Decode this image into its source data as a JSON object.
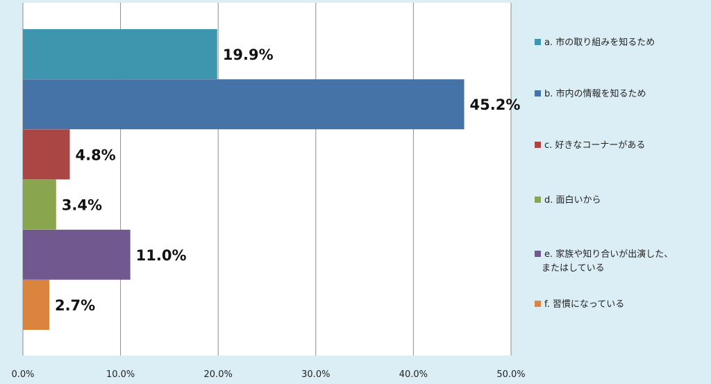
{
  "chart_data": {
    "type": "bar",
    "orientation": "horizontal",
    "categories": [
      "a. 市の取り組みを知るため",
      "b. 市内の情報を知るため",
      "c. 好きなコーナーがある",
      "d. 面白いから",
      "e. 家族や知り合いが出演した、またはしている",
      "f. 習慣になっている"
    ],
    "values": [
      19.9,
      45.2,
      4.8,
      3.4,
      11.0,
      2.7
    ],
    "value_labels": [
      "19.9%",
      "45.2%",
      "4.8%",
      "3.4%",
      "11.0%",
      "2.7%"
    ],
    "colors": [
      "#3d96ae",
      "#4572a7",
      "#aa4643",
      "#89a54e",
      "#71588f",
      "#db843d"
    ],
    "xlim": [
      0,
      50
    ],
    "x_ticks": [
      "0.0%",
      "10.0%",
      "20.0%",
      "30.0%",
      "40.0%",
      "50.0%"
    ],
    "title": "",
    "xlabel": "",
    "ylabel": "",
    "grid": "vertical",
    "legend": {
      "position": "right",
      "lines": [
        [
          "a. 市の取り組みを知るため"
        ],
        [
          "b. 市内の情報を知るため"
        ],
        [
          "c. 好きなコーナーがある"
        ],
        [
          "d. 面白いから"
        ],
        [
          "e. 家族や知り合いが出演した、",
          "またはしている"
        ],
        [
          "f. 習慣になっている"
        ]
      ]
    }
  }
}
